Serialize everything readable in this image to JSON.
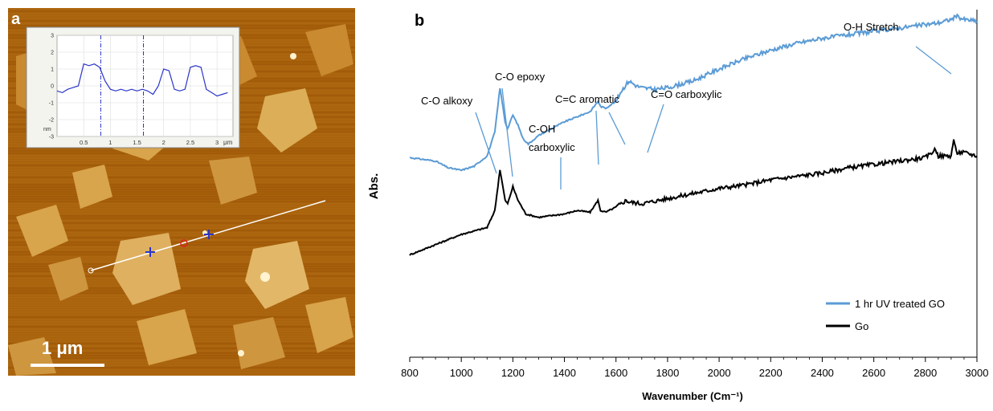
{
  "panel_a": {
    "label": "a",
    "scale_bar_label": "1 μm",
    "inset": {
      "y_ticks": [
        "3",
        "2",
        "1",
        "0",
        "-1",
        "-2",
        "-3"
      ],
      "y_unit": "nm",
      "x_ticks": [
        "0.5",
        "1",
        "1.5",
        "2",
        "2.5",
        "3"
      ],
      "x_unit": "μm"
    },
    "colors": {
      "afm_base": "#a8620c",
      "afm_flake": "#d8a44c",
      "profile_line": "#2a35c8"
    }
  },
  "panel_b": {
    "label": "b",
    "ylabel": "Abs.",
    "xlabel": "Wavenumber (Cm⁻¹)",
    "annotations": [
      "C-O alkoxy",
      "C-O epoxy",
      "C-OH",
      "carboxylic",
      "C=C aromatic",
      "C=O carboxylic",
      "O-H Stretch"
    ]
  },
  "chart_data": [
    {
      "type": "line",
      "title": "",
      "xlabel": "",
      "ylabel": "nm",
      "xunit": "μm",
      "xlim": [
        0,
        3.3
      ],
      "ylim": [
        -3,
        3
      ],
      "grid": true,
      "series": [
        {
          "color": "#2a35c8",
          "x": [
            0.0,
            0.1,
            0.2,
            0.3,
            0.4,
            0.5,
            0.6,
            0.7,
            0.8,
            0.9,
            1.0,
            1.1,
            1.2,
            1.3,
            1.4,
            1.5,
            1.6,
            1.7,
            1.8,
            1.9,
            2.0,
            2.1,
            2.2,
            2.3,
            2.4,
            2.5,
            2.6,
            2.7,
            2.8,
            2.9,
            3.0,
            3.1,
            3.2
          ],
          "y": [
            -0.3,
            -0.4,
            -0.2,
            -0.1,
            0.0,
            1.3,
            1.2,
            1.3,
            1.1,
            0.3,
            -0.2,
            -0.3,
            -0.2,
            -0.3,
            -0.2,
            -0.3,
            -0.2,
            -0.3,
            -0.5,
            0.0,
            1.0,
            0.9,
            -0.2,
            -0.3,
            -0.2,
            1.1,
            1.2,
            1.1,
            -0.2,
            -0.4,
            -0.6,
            -0.5,
            -0.4
          ]
        }
      ],
      "markers_x": [
        0.82,
        1.62
      ]
    },
    {
      "type": "line",
      "title": "",
      "xlabel": "Wavenumber (Cm⁻¹)",
      "ylabel": "Abs.",
      "xlim": [
        800,
        3000
      ],
      "x_ticks": [
        800,
        1000,
        1200,
        1400,
        1600,
        1800,
        2000,
        2200,
        2400,
        2600,
        2800,
        3000
      ],
      "ylim": [
        0,
        1
      ],
      "y_ticks_shown": false,
      "legend_position": "bottom-right",
      "series": [
        {
          "name": "1 hr UV treated GO",
          "color": "#5b9bd5",
          "x": [
            800,
            900,
            950,
            1000,
            1050,
            1100,
            1130,
            1150,
            1170,
            1180,
            1200,
            1220,
            1240,
            1260,
            1300,
            1350,
            1400,
            1450,
            1500,
            1530,
            1540,
            1560,
            1600,
            1620,
            1650,
            1680,
            1700,
            1750,
            1800,
            1900,
            2000,
            2100,
            2200,
            2300,
            2400,
            2500,
            2600,
            2700,
            2800,
            2850,
            2900,
            2920,
            2950,
            3000
          ],
          "y": [
            0.585,
            0.575,
            0.555,
            0.548,
            0.56,
            0.59,
            0.66,
            0.79,
            0.69,
            0.67,
            0.71,
            0.68,
            0.64,
            0.625,
            0.65,
            0.67,
            0.69,
            0.705,
            0.72,
            0.75,
            0.735,
            0.73,
            0.75,
            0.78,
            0.81,
            0.795,
            0.79,
            0.785,
            0.79,
            0.81,
            0.845,
            0.875,
            0.9,
            0.92,
            0.935,
            0.945,
            0.955,
            0.965,
            0.975,
            0.98,
            0.99,
            1.0,
            0.99,
            0.985
          ]
        },
        {
          "name": "Go",
          "color": "#000000",
          "x": [
            800,
            900,
            950,
            1000,
            1050,
            1100,
            1130,
            1150,
            1170,
            1180,
            1200,
            1220,
            1250,
            1300,
            1400,
            1450,
            1500,
            1530,
            1540,
            1560,
            1600,
            1640,
            1650,
            1700,
            1800,
            1900,
            2000,
            2100,
            2200,
            2300,
            2400,
            2500,
            2600,
            2700,
            2800,
            2840,
            2850,
            2900,
            2910,
            2920,
            2950,
            3000
          ],
          "y": [
            0.3,
            0.33,
            0.345,
            0.36,
            0.37,
            0.38,
            0.43,
            0.55,
            0.46,
            0.45,
            0.5,
            0.46,
            0.42,
            0.41,
            0.42,
            0.43,
            0.425,
            0.46,
            0.43,
            0.425,
            0.44,
            0.46,
            0.455,
            0.45,
            0.465,
            0.48,
            0.495,
            0.505,
            0.52,
            0.53,
            0.54,
            0.555,
            0.565,
            0.575,
            0.585,
            0.61,
            0.59,
            0.59,
            0.64,
            0.6,
            0.6,
            0.59
          ]
        }
      ]
    }
  ]
}
